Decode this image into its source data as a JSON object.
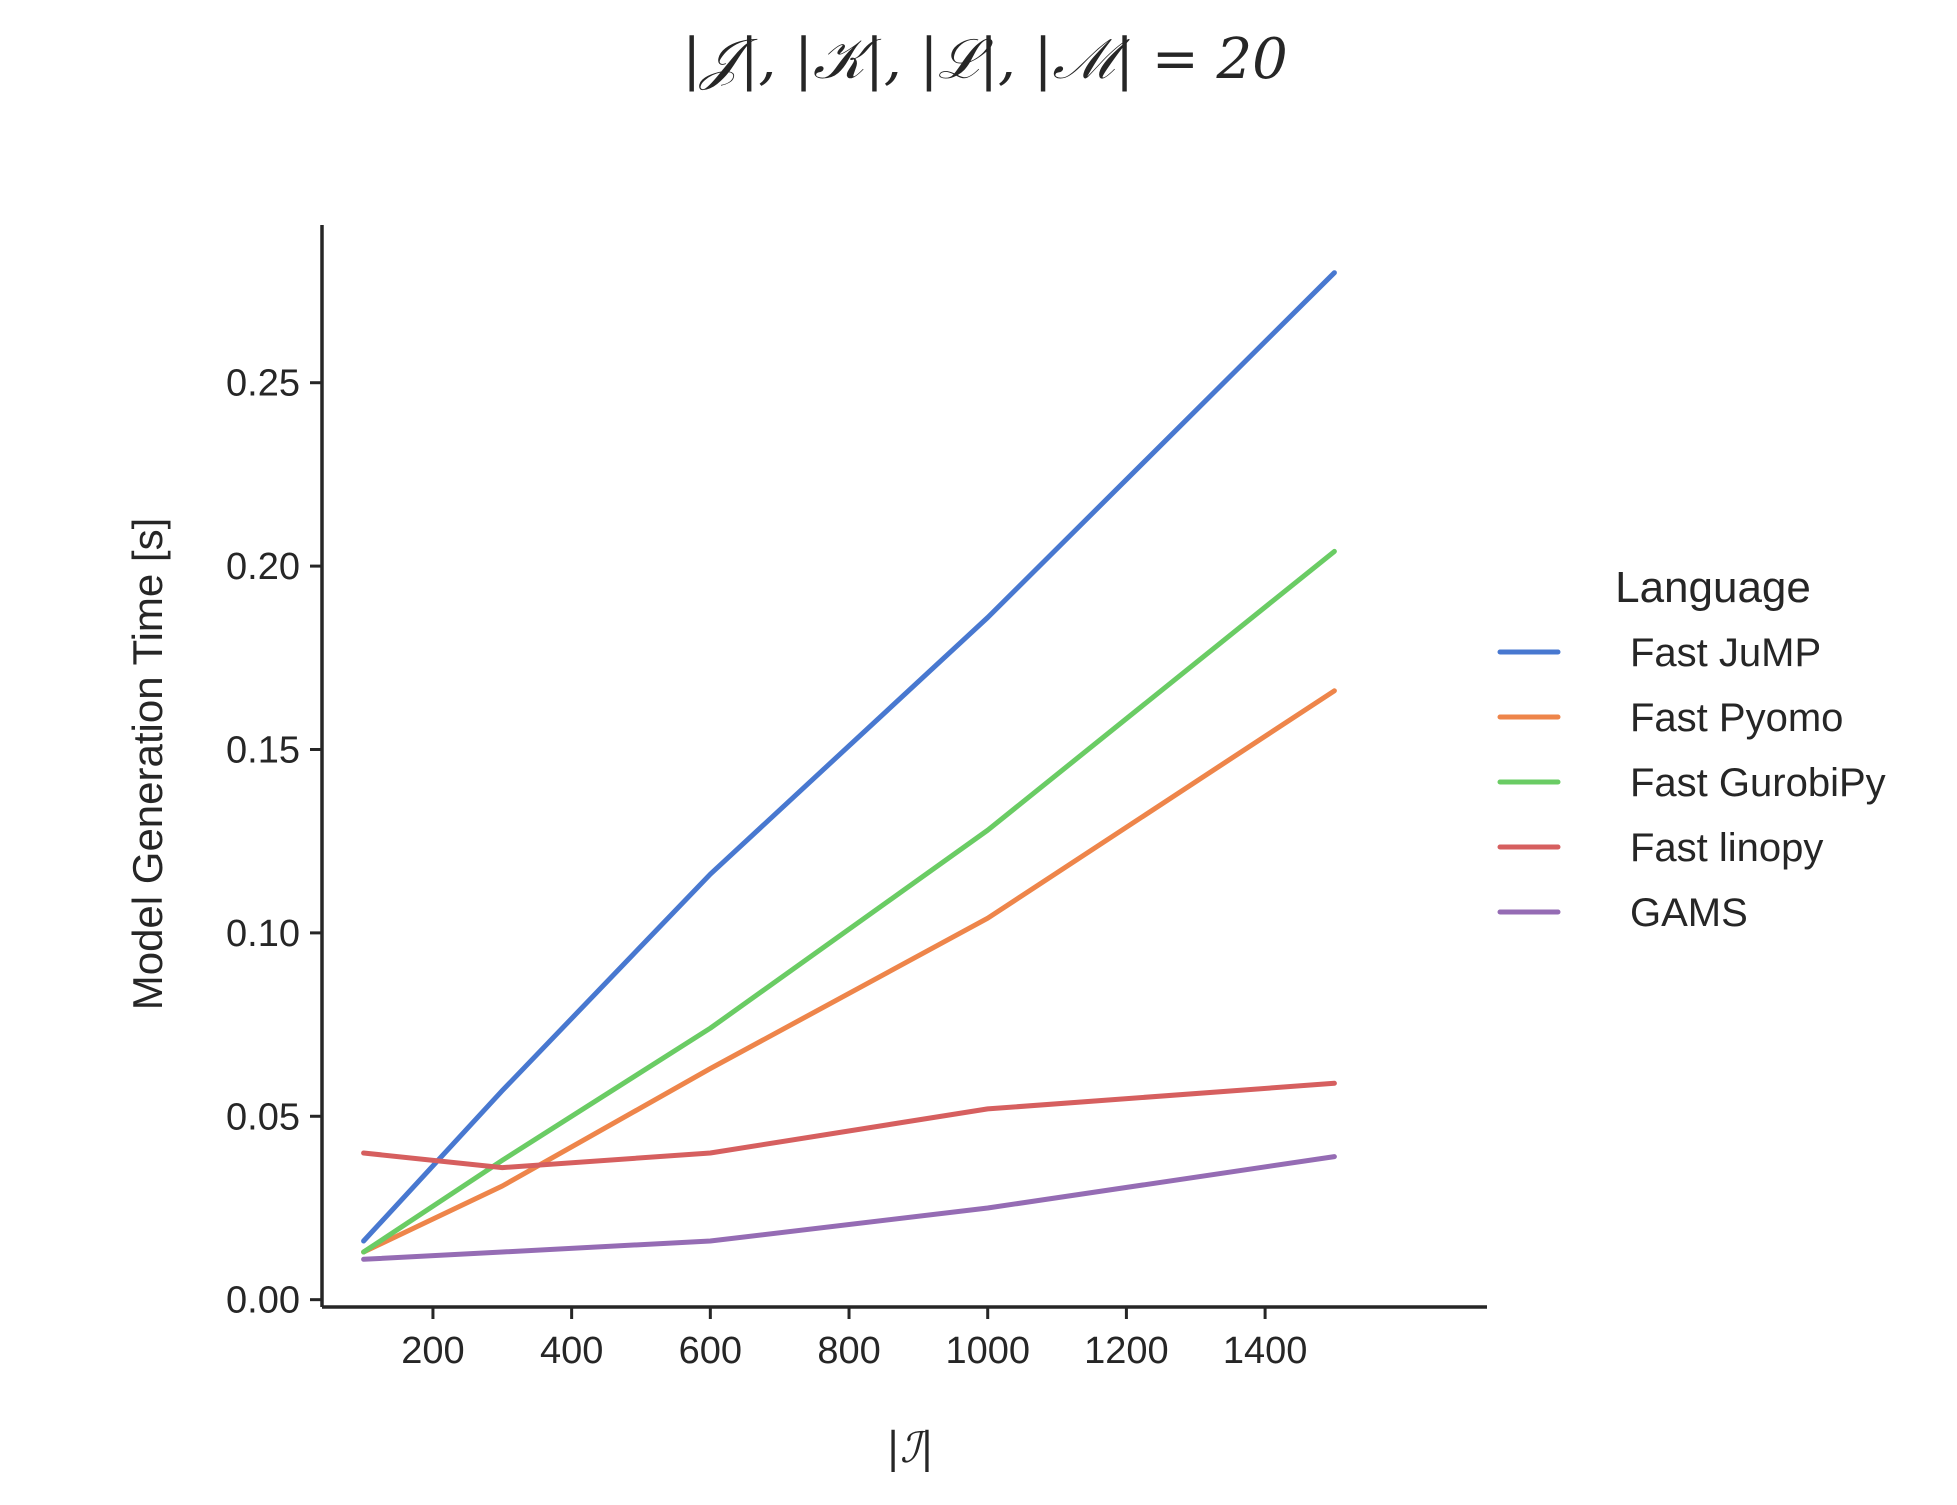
{
  "chart_data": {
    "type": "line",
    "title": "|𝒥|, |𝒦|, |ℒ|, |ℳ| = 20",
    "xlabel": "|ℐ|",
    "ylabel": "Model Generation Time [s]",
    "xlim": [
      40,
      1720
    ],
    "ylim": [
      -0.002,
      0.293
    ],
    "xticks": [
      200,
      400,
      600,
      800,
      1000,
      1200,
      1400
    ],
    "xtick_labels": [
      "200",
      "400",
      "600",
      "800",
      "1000",
      "1200",
      "1400"
    ],
    "yticks": [
      0.0,
      0.05,
      0.1,
      0.15,
      0.2,
      0.25
    ],
    "ytick_labels": [
      "0.00",
      "0.05",
      "0.10",
      "0.15",
      "0.20",
      "0.25"
    ],
    "grid": false,
    "legend": {
      "title": "Language",
      "placement": "right"
    },
    "x": [
      100,
      300,
      600,
      1000,
      1500
    ],
    "series": [
      {
        "name": "Fast JuMP",
        "color": "#4878d0",
        "values": [
          0.016,
          0.057,
          0.116,
          0.186,
          0.28
        ]
      },
      {
        "name": "Fast Pyomo",
        "color": "#ee854a",
        "values": [
          0.013,
          0.031,
          0.063,
          0.104,
          0.166
        ]
      },
      {
        "name": "Fast GurobiPy",
        "color": "#6acc64",
        "values": [
          0.013,
          0.038,
          0.074,
          0.128,
          0.204
        ]
      },
      {
        "name": "Fast linopy",
        "color": "#d65f5f",
        "values": [
          0.04,
          0.036,
          0.04,
          0.052,
          0.059
        ]
      },
      {
        "name": "GAMS",
        "color": "#956cb4",
        "values": [
          0.011,
          0.013,
          0.016,
          0.025,
          0.039
        ]
      }
    ]
  }
}
